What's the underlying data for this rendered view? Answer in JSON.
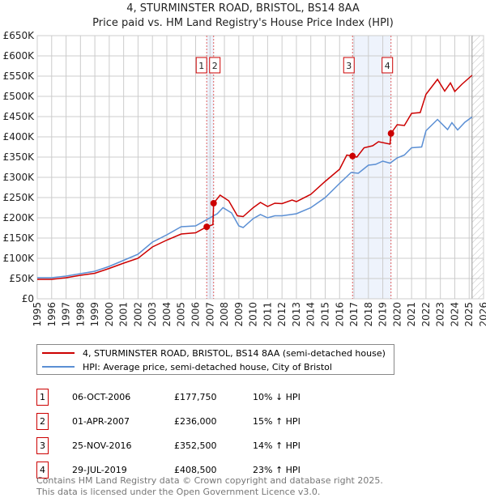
{
  "title_line1": "4, STURMINSTER ROAD, BRISTOL, BS14 8AA",
  "title_line2": "Price paid vs. HM Land Registry's House Price Index (HPI)",
  "chart_data": {
    "type": "line",
    "xlim": [
      1995,
      2026
    ],
    "ylim": [
      0,
      650000
    ],
    "yticks": [
      0,
      50000,
      100000,
      150000,
      200000,
      250000,
      300000,
      350000,
      400000,
      450000,
      500000,
      550000,
      600000,
      650000
    ],
    "ytick_labels": [
      "£0",
      "£50K",
      "£100K",
      "£150K",
      "£200K",
      "£250K",
      "£300K",
      "£350K",
      "£400K",
      "£450K",
      "£500K",
      "£550K",
      "£600K",
      "£650K"
    ],
    "xtick_labels": [
      "1995",
      "1996",
      "1997",
      "1998",
      "1999",
      "2000",
      "2001",
      "2002",
      "2003",
      "2004",
      "2005",
      "2006",
      "2007",
      "2008",
      "2009",
      "2010",
      "2011",
      "2012",
      "2013",
      "2014",
      "2015",
      "2016",
      "2017",
      "2018",
      "2019",
      "2020",
      "2021",
      "2022",
      "2023",
      "2024",
      "2025",
      "2026"
    ],
    "grid": true,
    "forecast_hatch_from": 2025.2,
    "shaded_ranges": [
      [
        2006.77,
        2007.25
      ],
      [
        2016.9,
        2019.57
      ]
    ],
    "series": [
      {
        "name": "4, STURMINSTER ROAD, BRISTOL, BS14 8AA (semi-detached house)",
        "color": "#cc0000",
        "x": [
          1995,
          1996,
          1997,
          1998,
          1999,
          2000,
          2001,
          2002,
          2003,
          2004,
          2005,
          2006,
          2006.77,
          2007.2,
          2007.25,
          2007.7,
          2008.3,
          2008.9,
          2009.3,
          2010,
          2010.5,
          2011,
          2011.5,
          2012,
          2012.7,
          2013,
          2014,
          2015,
          2016,
          2016.5,
          2016.9,
          2017.2,
          2017.7,
          2018.3,
          2018.7,
          2019.5,
          2019.57,
          2020,
          2020.5,
          2021,
          2021.6,
          2022,
          2022.8,
          2023.3,
          2023.7,
          2024,
          2024.5,
          2025.2
        ],
        "y": [
          48000,
          48000,
          52000,
          58000,
          63000,
          75000,
          88000,
          100000,
          128000,
          145000,
          160000,
          163000,
          177750,
          183000,
          236000,
          256000,
          242000,
          205000,
          203000,
          225000,
          238000,
          228000,
          236000,
          235000,
          244000,
          240000,
          258000,
          290000,
          320000,
          355000,
          352500,
          350000,
          373000,
          378000,
          388000,
          382000,
          408500,
          430000,
          428000,
          458000,
          460000,
          505000,
          542000,
          513000,
          533000,
          512000,
          530000,
          552000
        ]
      },
      {
        "name": "HPI: Average price, semi-detached house, City of Bristol",
        "color": "#5b8fd4",
        "x": [
          1995,
          1996,
          1997,
          1998,
          1999,
          2000,
          2001,
          2002,
          2003,
          2004,
          2005,
          2006,
          2006.8,
          2007.5,
          2007.9,
          2008.5,
          2009.0,
          2009.3,
          2010,
          2010.5,
          2011,
          2011.5,
          2012,
          2013,
          2014,
          2015,
          2016,
          2016.8,
          2017.3,
          2018,
          2018.5,
          2019,
          2019.5,
          2020,
          2020.5,
          2021,
          2021.7,
          2022,
          2022.8,
          2023.5,
          2023.8,
          2024.2,
          2024.7,
          2025.2
        ],
        "y": [
          52000,
          52000,
          56000,
          62000,
          68000,
          80000,
          95000,
          110000,
          140000,
          158000,
          178000,
          180000,
          196000,
          210000,
          225000,
          212000,
          180000,
          176000,
          198000,
          208000,
          200000,
          205000,
          205000,
          210000,
          225000,
          250000,
          285000,
          312000,
          310000,
          330000,
          332000,
          340000,
          335000,
          348000,
          355000,
          373000,
          375000,
          415000,
          443000,
          418000,
          435000,
          417000,
          436000,
          449000
        ]
      }
    ],
    "markers": [
      {
        "label": "1",
        "x": 2006.77,
        "y": 177750
      },
      {
        "label": "2",
        "x": 2007.25,
        "y": 236000
      },
      {
        "label": "3",
        "x": 2016.9,
        "y": 352500
      },
      {
        "label": "4",
        "x": 2019.57,
        "y": 408500
      }
    ]
  },
  "legend": {
    "property": "4, STURMINSTER ROAD, BRISTOL, BS14 8AA (semi-detached house)",
    "hpi": "HPI: Average price, semi-detached house, City of Bristol"
  },
  "transactions": [
    {
      "num": "1",
      "date": "06-OCT-2006",
      "price": "£177,750",
      "delta": "10% ↓ HPI"
    },
    {
      "num": "2",
      "date": "01-APR-2007",
      "price": "£236,000",
      "delta": "15% ↑ HPI"
    },
    {
      "num": "3",
      "date": "25-NOV-2016",
      "price": "£352,500",
      "delta": "14% ↑ HPI"
    },
    {
      "num": "4",
      "date": "29-JUL-2019",
      "price": "£408,500",
      "delta": "23% ↑ HPI"
    }
  ],
  "footer_line1": "Contains HM Land Registry data © Crown copyright and database right 2025.",
  "footer_line2": "This data is licensed under the Open Government Licence v3.0."
}
